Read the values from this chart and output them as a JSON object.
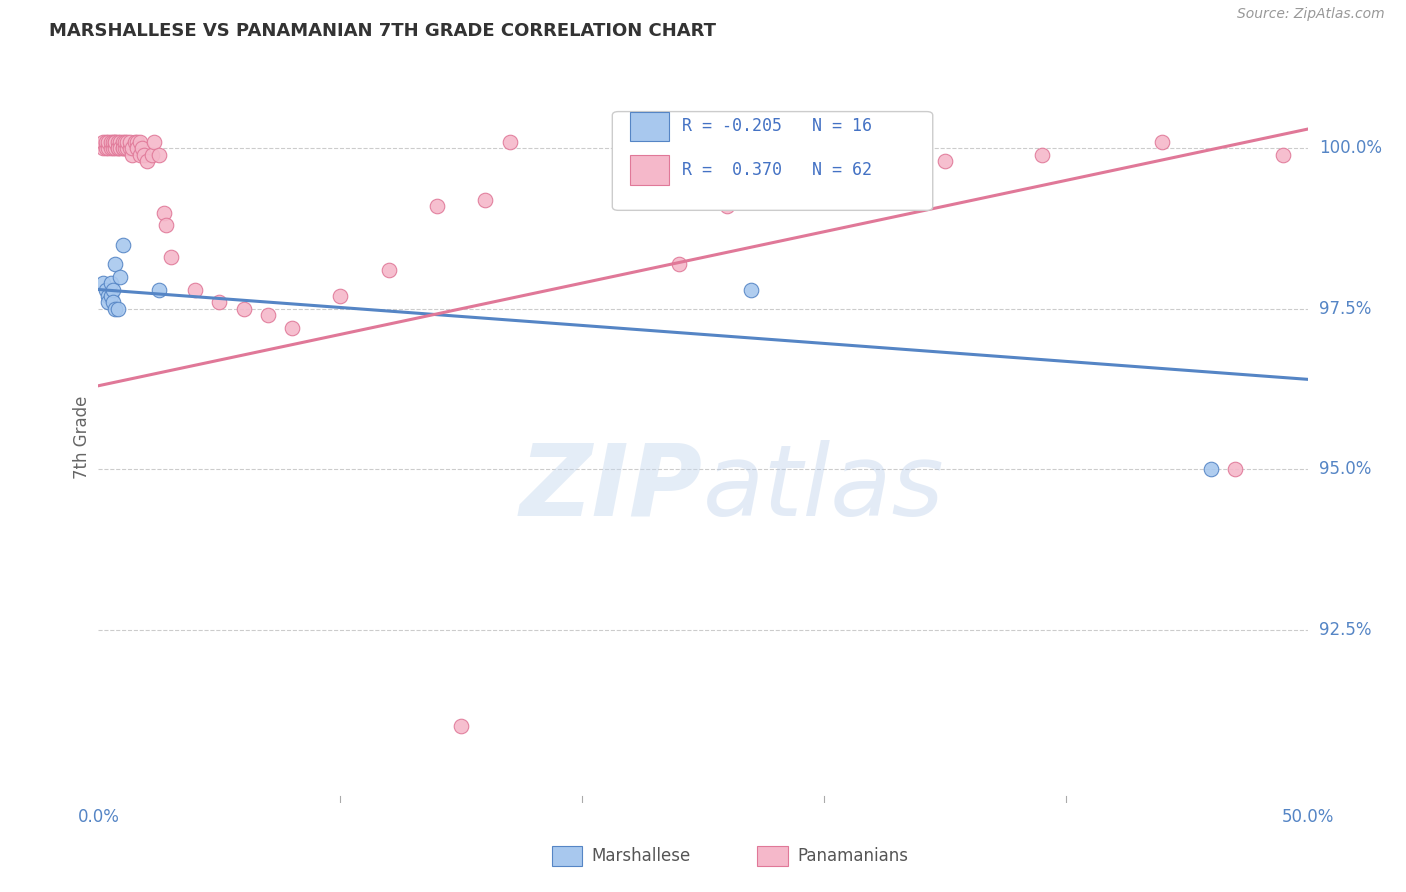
{
  "title": "MARSHALLESE VS PANAMANIAN 7TH GRADE CORRELATION CHART",
  "ylabel": "7th Grade",
  "source": "Source: ZipAtlas.com",
  "watermark": "ZIPatlas",
  "xmin": 0.0,
  "xmax": 0.5,
  "ymin": 0.898,
  "ymax": 1.012,
  "yticks": [
    0.925,
    0.95,
    0.975,
    1.0
  ],
  "ytick_labels": [
    "92.5%",
    "95.0%",
    "97.5%",
    "100.0%"
  ],
  "xticks": [
    0.0,
    0.1,
    0.2,
    0.3,
    0.4,
    0.5
  ],
  "xtick_labels": [
    "0.0%",
    "",
    "",
    "",
    "",
    "50.0%"
  ],
  "blue_color": "#A8C8EE",
  "pink_color": "#F5B8CA",
  "blue_line_color": "#5585C5",
  "pink_line_color": "#E07898",
  "blue_trend_x": [
    0.0,
    0.5
  ],
  "blue_trend_y": [
    0.978,
    0.964
  ],
  "pink_trend_x": [
    0.0,
    0.5
  ],
  "pink_trend_y": [
    0.963,
    1.003
  ],
  "blue_points_x": [
    0.002,
    0.003,
    0.004,
    0.004,
    0.005,
    0.005,
    0.006,
    0.006,
    0.007,
    0.007,
    0.008,
    0.009,
    0.01,
    0.025,
    0.27,
    0.46
  ],
  "blue_points_y": [
    0.979,
    0.978,
    0.977,
    0.976,
    0.977,
    0.979,
    0.978,
    0.976,
    0.982,
    0.975,
    0.975,
    0.98,
    0.985,
    0.978,
    0.978,
    0.95
  ],
  "pink_points_x": [
    0.002,
    0.002,
    0.003,
    0.003,
    0.004,
    0.004,
    0.005,
    0.005,
    0.006,
    0.006,
    0.007,
    0.007,
    0.007,
    0.008,
    0.008,
    0.008,
    0.009,
    0.009,
    0.01,
    0.01,
    0.01,
    0.011,
    0.011,
    0.012,
    0.012,
    0.013,
    0.013,
    0.014,
    0.014,
    0.015,
    0.016,
    0.016,
    0.017,
    0.017,
    0.018,
    0.019,
    0.02,
    0.022,
    0.023,
    0.025,
    0.027,
    0.028,
    0.03,
    0.04,
    0.05,
    0.06,
    0.07,
    0.08,
    0.1,
    0.12,
    0.14,
    0.16,
    0.17,
    0.24,
    0.26,
    0.31,
    0.35,
    0.39,
    0.44,
    0.47,
    0.49,
    0.15
  ],
  "pink_points_y": [
    1.0,
    1.001,
    1.0,
    1.001,
    1.0,
    1.001,
    1.0,
    1.001,
    1.0,
    1.001,
    1.001,
    1.0,
    1.001,
    1.0,
    1.001,
    1.0,
    1.001,
    1.0,
    1.0,
    1.001,
    1.0,
    1.0,
    1.001,
    1.0,
    1.001,
    1.0,
    1.001,
    0.999,
    1.0,
    1.001,
    1.001,
    1.0,
    1.001,
    0.999,
    1.0,
    0.999,
    0.998,
    0.999,
    1.001,
    0.999,
    0.99,
    0.988,
    0.983,
    0.978,
    0.976,
    0.975,
    0.974,
    0.972,
    0.977,
    0.981,
    0.991,
    0.992,
    1.001,
    0.982,
    0.991,
    0.999,
    0.998,
    0.999,
    1.001,
    0.95,
    0.999,
    0.91
  ]
}
